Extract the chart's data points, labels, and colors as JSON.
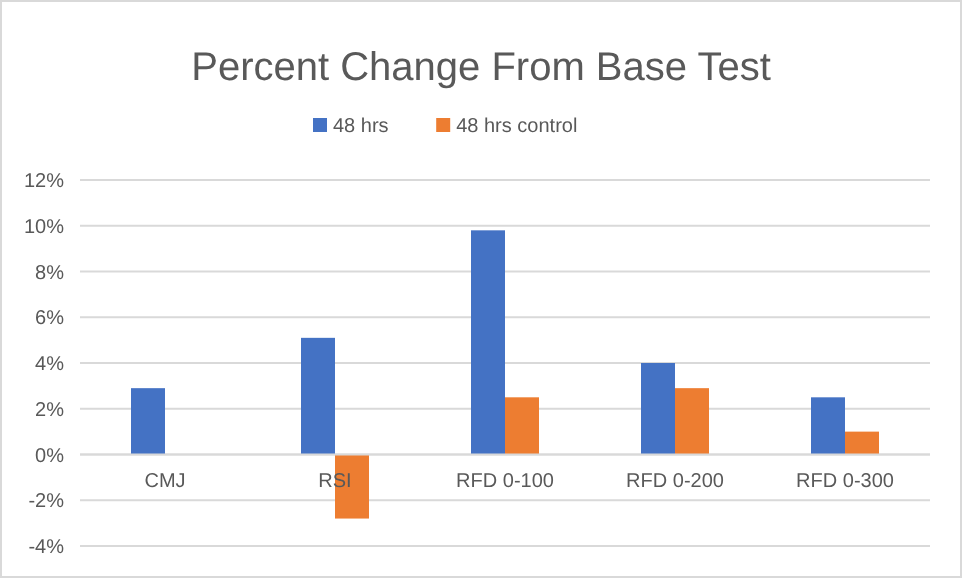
{
  "chart_data": {
    "type": "bar",
    "title": "Percent Change From Base Test",
    "categories": [
      "CMJ",
      "RSI",
      "RFD 0-100",
      "RFD 0-200",
      "RFD 0-300"
    ],
    "series": [
      {
        "name": "48 hrs",
        "color": "#4472c4",
        "values": [
          2.9,
          5.1,
          9.8,
          4.0,
          2.5
        ]
      },
      {
        "name": "48 hrs control",
        "color": "#ed7d31",
        "values": [
          null,
          -2.8,
          2.5,
          2.9,
          1.0
        ]
      }
    ],
    "ylim": [
      -4,
      12
    ],
    "yticks": [
      {
        "value": -4,
        "label": "-4%"
      },
      {
        "value": -2,
        "label": "-2%"
      },
      {
        "value": 0,
        "label": "0%"
      },
      {
        "value": 2,
        "label": "2%"
      },
      {
        "value": 4,
        "label": "4%"
      },
      {
        "value": 6,
        "label": "6%"
      },
      {
        "value": 8,
        "label": "8%"
      },
      {
        "value": 10,
        "label": "10%"
      },
      {
        "value": 12,
        "label": "12%"
      }
    ],
    "grid": "y",
    "legend": "top"
  }
}
